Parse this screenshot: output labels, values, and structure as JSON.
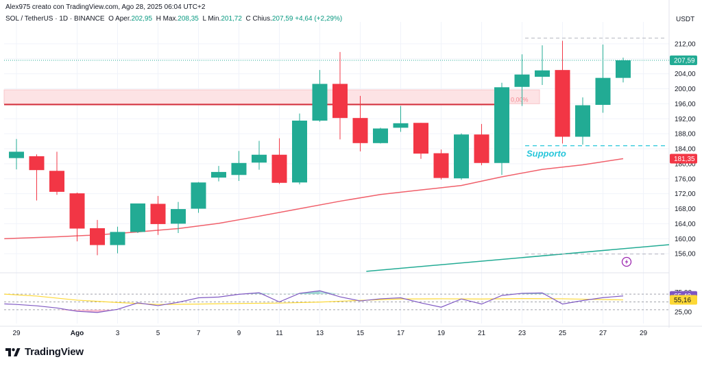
{
  "header": {
    "created_by": "Alex975 creato con TradingView.com, Ago 28, 2025 06:04 UTC+2",
    "symbol": "SOL / TetherUS · 1D · BINANCE",
    "open_label": "O",
    "open_text": "Aper.",
    "open_value": "202,95",
    "high_label": "H",
    "high_text": "Max.",
    "high_value": "208,35",
    "low_label": "L",
    "low_text": "Min.",
    "low_value": "201,72",
    "close_label": "C",
    "close_text": "Chius.",
    "close_value": "207,59",
    "change": "+4,64 (+2,29%)"
  },
  "colors": {
    "up": "#22ab94",
    "down": "#f23645",
    "ema": "#f05f6a",
    "trend": "#22ab94",
    "rsi": "#7e57c2",
    "rsi_ma": "#fdd835",
    "zone": "#fde3e5",
    "price_tag": "#22ab94",
    "ema_tag": "#f23645"
  },
  "logo_text": "TradingView",
  "chart_data": {
    "type": "candlestick",
    "currency": "USDT",
    "ylim": [
      152,
      216
    ],
    "y_ticks": [
      {
        "v": 212,
        "label": "212,00"
      },
      {
        "v": 208,
        "label": "208,00"
      },
      {
        "v": 204,
        "label": "204,00"
      },
      {
        "v": 200,
        "label": "200,00"
      },
      {
        "v": 196,
        "label": "196,00"
      },
      {
        "v": 192,
        "label": "192,00"
      },
      {
        "v": 188,
        "label": "188,00"
      },
      {
        "v": 184,
        "label": "184,00"
      },
      {
        "v": 180,
        "label": "180,00"
      },
      {
        "v": 176,
        "label": "176,00"
      },
      {
        "v": 172,
        "label": "172,00"
      },
      {
        "v": 168,
        "label": "168,00"
      },
      {
        "v": 164,
        "label": "164,00"
      },
      {
        "v": 160,
        "label": "160,00"
      },
      {
        "v": 156,
        "label": "156,00"
      }
    ],
    "x_ticks": [
      {
        "i": 0,
        "label": "29",
        "bold": false
      },
      {
        "i": 3,
        "label": "Ago",
        "bold": true
      },
      {
        "i": 5,
        "label": "3",
        "bold": false
      },
      {
        "i": 7,
        "label": "5",
        "bold": false
      },
      {
        "i": 9,
        "label": "7",
        "bold": false
      },
      {
        "i": 11,
        "label": "9",
        "bold": false
      },
      {
        "i": 13,
        "label": "11",
        "bold": false
      },
      {
        "i": 15,
        "label": "13",
        "bold": false
      },
      {
        "i": 17,
        "label": "15",
        "bold": false
      },
      {
        "i": 19,
        "label": "17",
        "bold": false
      },
      {
        "i": 21,
        "label": "19",
        "bold": false
      },
      {
        "i": 23,
        "label": "21",
        "bold": false
      },
      {
        "i": 25,
        "label": "23",
        "bold": false
      },
      {
        "i": 27,
        "label": "25",
        "bold": false
      },
      {
        "i": 29,
        "label": "27",
        "bold": false
      },
      {
        "i": 31,
        "label": "29",
        "bold": false
      }
    ],
    "candles": [
      {
        "o": 181.5,
        "h": 186.6,
        "l": 178.5,
        "c": 183.2
      },
      {
        "o": 182.0,
        "h": 182.5,
        "l": 170.2,
        "c": 178.3
      },
      {
        "o": 178.1,
        "h": 183.2,
        "l": 171.7,
        "c": 172.5
      },
      {
        "o": 172.1,
        "h": 172.3,
        "l": 159.3,
        "c": 162.7
      },
      {
        "o": 162.8,
        "h": 165.0,
        "l": 155.6,
        "c": 158.3
      },
      {
        "o": 158.3,
        "h": 163.2,
        "l": 156.1,
        "c": 161.8
      },
      {
        "o": 161.8,
        "h": 169.2,
        "l": 161.5,
        "c": 169.4
      },
      {
        "o": 169.3,
        "h": 171.4,
        "l": 161.0,
        "c": 163.9
      },
      {
        "o": 164.0,
        "h": 169.8,
        "l": 161.5,
        "c": 167.9
      },
      {
        "o": 168.0,
        "h": 175.1,
        "l": 166.9,
        "c": 175.0
      },
      {
        "o": 176.3,
        "h": 179.4,
        "l": 175.3,
        "c": 177.8
      },
      {
        "o": 177.0,
        "h": 183.4,
        "l": 175.4,
        "c": 180.2
      },
      {
        "o": 180.3,
        "h": 186.1,
        "l": 178.4,
        "c": 182.4
      },
      {
        "o": 182.4,
        "h": 186.8,
        "l": 174.6,
        "c": 174.9
      },
      {
        "o": 175.0,
        "h": 193.4,
        "l": 174.5,
        "c": 191.5
      },
      {
        "o": 191.5,
        "h": 205.0,
        "l": 191.2,
        "c": 201.3
      },
      {
        "o": 201.3,
        "h": 209.8,
        "l": 186.5,
        "c": 192.2
      },
      {
        "o": 192.2,
        "h": 198.1,
        "l": 183.3,
        "c": 185.5
      },
      {
        "o": 185.5,
        "h": 189.6,
        "l": 185.4,
        "c": 189.4
      },
      {
        "o": 189.6,
        "h": 195.4,
        "l": 188.5,
        "c": 190.8
      },
      {
        "o": 190.9,
        "h": 190.9,
        "l": 181.3,
        "c": 182.7
      },
      {
        "o": 182.8,
        "h": 183.8,
        "l": 175.8,
        "c": 176.2
      },
      {
        "o": 176.1,
        "h": 188.1,
        "l": 175.7,
        "c": 187.8
      },
      {
        "o": 187.8,
        "h": 190.6,
        "l": 179.6,
        "c": 180.2
      },
      {
        "o": 180.2,
        "h": 201.6,
        "l": 177.0,
        "c": 200.4
      },
      {
        "o": 200.5,
        "h": 209.2,
        "l": 195.4,
        "c": 203.8
      },
      {
        "o": 203.2,
        "h": 211.6,
        "l": 201.0,
        "c": 204.9
      },
      {
        "o": 205.0,
        "h": 212.8,
        "l": 185.4,
        "c": 187.2
      },
      {
        "o": 187.2,
        "h": 197.7,
        "l": 185.1,
        "c": 195.6
      },
      {
        "o": 195.7,
        "h": 211.8,
        "l": 193.6,
        "c": 202.9
      },
      {
        "o": 202.9,
        "h": 208.3,
        "l": 201.7,
        "c": 207.6
      }
    ],
    "ema_points": [
      {
        "i": -0.6,
        "v": 160.0
      },
      {
        "i": 2,
        "v": 160.5
      },
      {
        "i": 4,
        "v": 161.0
      },
      {
        "i": 6,
        "v": 161.8
      },
      {
        "i": 8,
        "v": 162.7
      },
      {
        "i": 10,
        "v": 164.1
      },
      {
        "i": 12,
        "v": 166.0
      },
      {
        "i": 14,
        "v": 168.0
      },
      {
        "i": 16,
        "v": 170.0
      },
      {
        "i": 18,
        "v": 171.8
      },
      {
        "i": 20,
        "v": 173.0
      },
      {
        "i": 22,
        "v": 174.2
      },
      {
        "i": 24,
        "v": 176.5
      },
      {
        "i": 26,
        "v": 178.5
      },
      {
        "i": 28,
        "v": 179.7
      },
      {
        "i": 30,
        "v": 181.35
      }
    ],
    "ema_value": "181,35",
    "last_price": "207,59",
    "resistance": {
      "top": 199.7,
      "bottom": 196.0,
      "line": 195.8,
      "label": "0,00%"
    },
    "support": {
      "value": 184.8,
      "label": "Supporto"
    },
    "top_dashed": 213.5,
    "bottom_dashed": 155.9,
    "trendline": {
      "start_i": 17.3,
      "start_v": 151.3,
      "end_v": 158.4
    },
    "rsi": {
      "ticks": [
        {
          "v": 75,
          "label": "75,00"
        },
        {
          "v": 25,
          "label": "25,00"
        }
      ],
      "guide_lines": [
        70,
        50,
        30
      ],
      "value": 65.4,
      "value_label": "65,40",
      "ma_value": 55.16,
      "ma_label": "55,16",
      "line": [
        {
          "i": -0.6,
          "v": 45.0
        },
        {
          "i": 0,
          "v": 43.5
        },
        {
          "i": 1,
          "v": 40.0
        },
        {
          "i": 2,
          "v": 34.5
        },
        {
          "i": 3,
          "v": 26.0
        },
        {
          "i": 4,
          "v": 23.0
        },
        {
          "i": 5,
          "v": 31.0
        },
        {
          "i": 6,
          "v": 47.5
        },
        {
          "i": 7,
          "v": 40.5
        },
        {
          "i": 8,
          "v": 49.0
        },
        {
          "i": 9,
          "v": 60.5
        },
        {
          "i": 10,
          "v": 62.5
        },
        {
          "i": 11,
          "v": 69.5
        },
        {
          "i": 12,
          "v": 73.5
        },
        {
          "i": 13,
          "v": 50.0
        },
        {
          "i": 14,
          "v": 72.0
        },
        {
          "i": 15,
          "v": 78.5
        },
        {
          "i": 16,
          "v": 63.0
        },
        {
          "i": 17,
          "v": 52.5
        },
        {
          "i": 18,
          "v": 58.0
        },
        {
          "i": 19,
          "v": 60.5
        },
        {
          "i": 20,
          "v": 47.5
        },
        {
          "i": 21,
          "v": 36.5
        },
        {
          "i": 22,
          "v": 57.5
        },
        {
          "i": 23,
          "v": 44.5
        },
        {
          "i": 24,
          "v": 66.5
        },
        {
          "i": 25,
          "v": 72.0
        },
        {
          "i": 26,
          "v": 73.0
        },
        {
          "i": 27,
          "v": 44.5
        },
        {
          "i": 28,
          "v": 53.5
        },
        {
          "i": 29,
          "v": 61.0
        },
        {
          "i": 30,
          "v": 65.4
        }
      ],
      "ma": [
        {
          "i": -0.6,
          "v": 70.0
        },
        {
          "i": 1,
          "v": 65.0
        },
        {
          "i": 3,
          "v": 54.5
        },
        {
          "i": 5,
          "v": 48.5
        },
        {
          "i": 7,
          "v": 43.5
        },
        {
          "i": 9,
          "v": 44.5
        },
        {
          "i": 11,
          "v": 46.0
        },
        {
          "i": 13,
          "v": 47.0
        },
        {
          "i": 15,
          "v": 49.5
        },
        {
          "i": 17,
          "v": 54.0
        },
        {
          "i": 19,
          "v": 57.5
        },
        {
          "i": 21,
          "v": 58.0
        },
        {
          "i": 23,
          "v": 57.5
        },
        {
          "i": 25,
          "v": 58.5
        },
        {
          "i": 27,
          "v": 58.0
        },
        {
          "i": 29,
          "v": 56.0
        },
        {
          "i": 30,
          "v": 55.16
        }
      ]
    }
  }
}
